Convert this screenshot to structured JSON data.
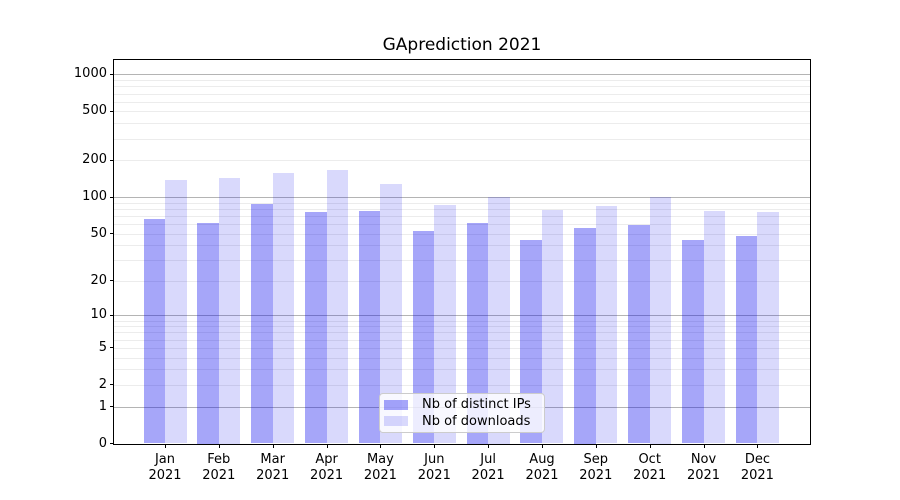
{
  "chart_data": {
    "type": "bar",
    "title": "GAprediction 2021",
    "categories": [
      "Jan 2021",
      "Feb 2021",
      "Mar 2021",
      "Apr 2021",
      "May 2021",
      "Jun 2021",
      "Jul 2021",
      "Aug 2021",
      "Sep 2021",
      "Oct 2021",
      "Nov 2021",
      "Dec 2021"
    ],
    "series": [
      {
        "key": "distinct-ips",
        "name": "Nb of distinct IPs",
        "color": "rgba(0,0,238,0.35)",
        "values": [
          66,
          61,
          88,
          75,
          77,
          52,
          61,
          44,
          56,
          59,
          44,
          48
        ]
      },
      {
        "key": "downloads",
        "name": "Nb of downloads",
        "color": "rgba(0,0,238,0.15)",
        "values": [
          138,
          143,
          158,
          167,
          128,
          86,
          100,
          78,
          84,
          100,
          77,
          75
        ]
      }
    ],
    "xlabel": "",
    "ylabel": "",
    "yscale": "log1p",
    "y_ticks": [
      0,
      1,
      2,
      5,
      10,
      20,
      50,
      100,
      200,
      500,
      1000
    ],
    "ylim": [
      0,
      1300
    ],
    "grid": "both",
    "legend_position": "lower center",
    "colors": {
      "major_grid": "#b4b4b4",
      "minor_grid": "#ececec",
      "bar_dark": "#a6a6f3",
      "bar_light": "#d9d9fa"
    }
  }
}
